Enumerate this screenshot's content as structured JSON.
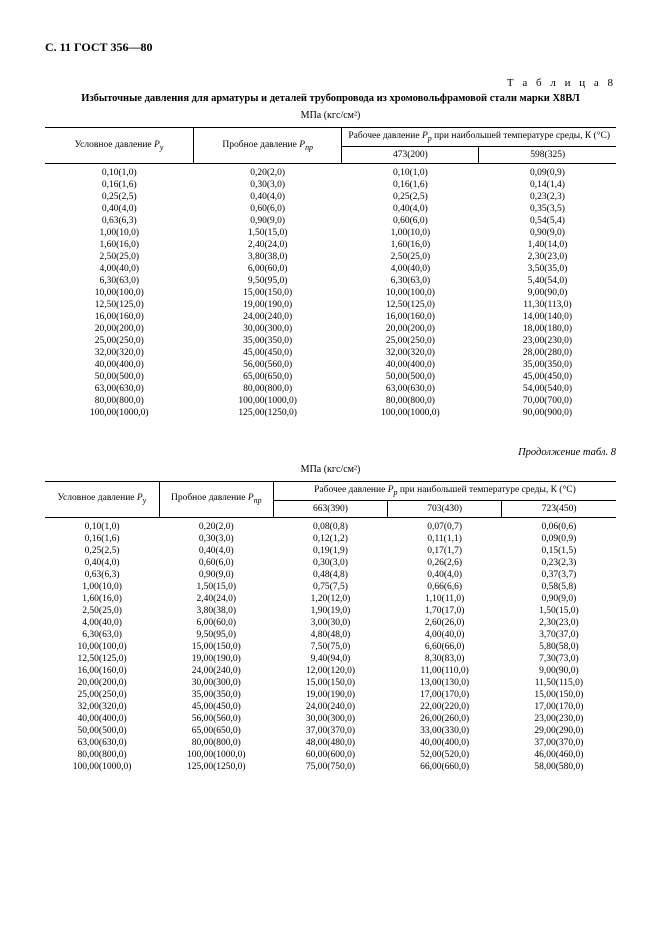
{
  "pageHeader": "С. 11 ГОСТ 356—80",
  "tableLabel": "Т а б л и ц а  8",
  "tableTitle": "Избыточные давления для арматуры и деталей трубопровода из хромовольфрамовой стали марки Х8ВЛ",
  "unitLabel": "МПа (кгс/см²)",
  "contLabel": "Продолжение табл. 8",
  "headers": {
    "pu": "Условное давление ",
    "puSub": "P",
    "puSubSub": "у",
    "ppr": "Пробное давление ",
    "pprSub": "P",
    "pprSubSub": "пр",
    "workTop1": "Рабочее давление ",
    "workTopSub": "P",
    "workTopSubSub": "р",
    "workTop2": " при наибольшей температуре среды, К (°С)",
    "workTop2Long": " при наибольшей температуре среды, К (°С)"
  },
  "table1cols": [
    "473(200)",
    "598(325)"
  ],
  "table1": [
    [
      "0,10(1,0)",
      "0,20(2,0)",
      "0,10(1,0)",
      "0,09(0,9)"
    ],
    [
      "0,16(1,6)",
      "0,30(3,0)",
      "0,16(1,6)",
      "0,14(1,4)"
    ],
    [
      "0,25(2,5)",
      "0,40(4,0)",
      "0,25(2,5)",
      "0,23(2,3)"
    ],
    [
      "0,40(4,0)",
      "0,60(6,0)",
      "0,40(4,0)",
      "0,35(3,5)"
    ],
    [
      "0,63(6,3)",
      "0,90(9,0)",
      "0,60(6,0)",
      "0,54(5,4)"
    ],
    [
      "1,00(10,0)",
      "1,50(15,0)",
      "1,00(10,0)",
      "0,90(9,0)"
    ],
    [
      "1,60(16,0)",
      "2,40(24,0)",
      "1,60(16,0)",
      "1,40(14,0)"
    ],
    [
      "2,50(25,0)",
      "3,80(38,0)",
      "2,50(25,0)",
      "2,30(23,0)"
    ],
    [
      "4,00(40,0)",
      "6,00(60,0)",
      "4,00(40,0)",
      "3,50(35,0)"
    ],
    [
      "6,30(63,0)",
      "9,50(95,0)",
      "6,30(63,0)",
      "5,40(54,0)"
    ],
    [
      "10,00(100,0)",
      "15,00(150,0)",
      "10,00(100,0)",
      "9,00(90,0)"
    ],
    [
      "12,50(125,0)",
      "19,00(190,0)",
      "12,50(125,0)",
      "11,30(113,0)"
    ],
    [
      "16,00(160,0)",
      "24,00(240,0)",
      "16,00(160,0)",
      "14,00(140,0)"
    ],
    [
      "20,00(200,0)",
      "30,00(300,0)",
      "20,00(200,0)",
      "18,00(180,0)"
    ],
    [
      "25,00(250,0)",
      "35,00(350,0)",
      "25,00(250,0)",
      "23,00(230,0)"
    ],
    [
      "32,00(320,0)",
      "45,00(450,0)",
      "32,00(320,0)",
      "28,00(280,0)"
    ],
    [
      "40,00(400,0)",
      "56,00(560,0)",
      "40,00(400,0)",
      "35,00(350,0)"
    ],
    [
      "50,00(500,0)",
      "65,00(650,0)",
      "50,00(500,0)",
      "45,00(450,0)"
    ],
    [
      "63,00(630,0)",
      "80,00(800,0)",
      "63,00(630,0)",
      "54,00(540,0)"
    ],
    [
      "80,00(800,0)",
      "100,00(1000,0)",
      "80,00(800,0)",
      "70,00(700,0)"
    ],
    [
      "100,00(1000,0)",
      "125,00(1250,0)",
      "100,00(1000,0)",
      "90,00(900,0)"
    ]
  ],
  "table2cols": [
    "663(390)",
    "703(430)",
    "723(450)"
  ],
  "table2": [
    [
      "0,10(1,0)",
      "0,20(2,0)",
      "0,08(0,8)",
      "0,07(0,7)",
      "0,06(0,6)"
    ],
    [
      "0,16(1,6)",
      "0,30(3,0)",
      "0,12(1,2)",
      "0,11(1,1)",
      "0,09(0,9)"
    ],
    [
      "0,25(2,5)",
      "0,40(4,0)",
      "0,19(1,9)",
      "0,17(1,7)",
      "0,15(1,5)"
    ],
    [
      "0,40(4,0)",
      "0,60(6,0)",
      "0,30(3,0)",
      "0,26(2,6)",
      "0,23(2,3)"
    ],
    [
      "0,63(6,3)",
      "0,90(9,0)",
      "0,48(4,8)",
      "0,40(4,0)",
      "0,37(3,7)"
    ],
    [
      "1,00(10,0)",
      "1,50(15,0)",
      "0,75(7,5)",
      "0,66(6,6)",
      "0,58(5,8)"
    ],
    [
      "1,60(16,0)",
      "2,40(24,0)",
      "1,20(12,0)",
      "1,10(11,0)",
      "0,90(9,0)"
    ],
    [
      "2,50(25,0)",
      "3,80(38,0)",
      "1,90(19,0)",
      "1,70(17,0)",
      "1,50(15,0)"
    ],
    [
      "4,00(40,0)",
      "6,00(60,0)",
      "3,00(30,0)",
      "2,60(26,0)",
      "2,30(23,0)"
    ],
    [
      "6,30(63,0)",
      "9,50(95,0)",
      "4,80(48,0)",
      "4,00(40,0)",
      "3,70(37,0)"
    ],
    [
      "10,00(100,0)",
      "15,00(150,0)",
      "7,50(75,0)",
      "6,60(66,0)",
      "5,80(58,0)"
    ],
    [
      "12,50(125,0)",
      "19,00(190,0)",
      "9,40(94,0)",
      "8,30(83,0)",
      "7,30(73,0)"
    ],
    [
      "16,00(160,0)",
      "24,00(240,0)",
      "12,00(120,0)",
      "11,00(110,0)",
      "9,00(90,0)"
    ],
    [
      "20,00(200,0)",
      "30,00(300,0)",
      "15,00(150,0)",
      "13,00(130,0)",
      "11,50(115,0)"
    ],
    [
      "25,00(250,0)",
      "35,00(350,0)",
      "19,00(190,0)",
      "17,00(170,0)",
      "15,00(150,0)"
    ],
    [
      "32,00(320,0)",
      "45,00(450,0)",
      "24,00(240,0)",
      "22,00(220,0)",
      "17,00(170,0)"
    ],
    [
      "40,00(400,0)",
      "56,00(560,0)",
      "30,00(300,0)",
      "26,00(260,0)",
      "23,00(230,0)"
    ],
    [
      "50,00(500,0)",
      "65,00(650,0)",
      "37,00(370,0)",
      "33,00(330,0)",
      "29,00(290,0)"
    ],
    [
      "63,00(630,0)",
      "80,00(800,0)",
      "48,00(480,0)",
      "40,00(400,0)",
      "37,00(370,0)"
    ],
    [
      "80,00(800,0)",
      "100,00(1000,0)",
      "60,00(600,0)",
      "52,00(520,0)",
      "46,00(460,0)"
    ],
    [
      "100,00(1000,0)",
      "125,00(1250,0)",
      "75,00(750,0)",
      "66,00(660,0)",
      "58,00(580,0)"
    ]
  ]
}
